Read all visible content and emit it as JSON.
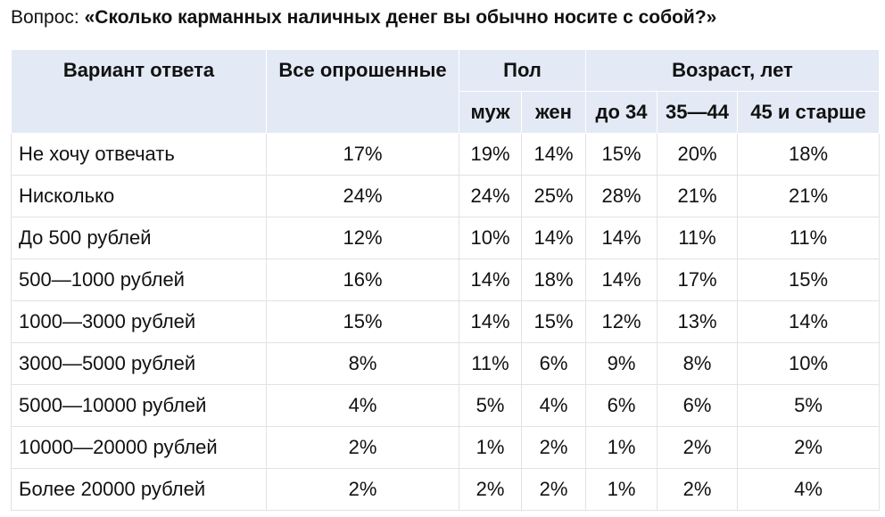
{
  "title": {
    "prefix": "Вопрос:",
    "question": "«Сколько карманных наличных денег вы обычно носите с собой?»"
  },
  "table": {
    "header": {
      "answer": "Вариант ответа",
      "all": "Все опрошенные",
      "sex": "Пол",
      "age": "Возраст, лет",
      "sub": [
        "муж",
        "жен",
        "до 34",
        "35—44",
        "45 и старше"
      ]
    },
    "rows": [
      [
        "Не хочу отвечать",
        "17%",
        "19%",
        "14%",
        "15%",
        "20%",
        "18%"
      ],
      [
        "Нисколько",
        "24%",
        "24%",
        "25%",
        "28%",
        "21%",
        "21%"
      ],
      [
        "До 500 рублей",
        "12%",
        "10%",
        "14%",
        "14%",
        "11%",
        "11%"
      ],
      [
        "500—1000 рублей",
        "16%",
        "14%",
        "18%",
        "14%",
        "17%",
        "15%"
      ],
      [
        "1000—3000 рублей",
        "15%",
        "14%",
        "15%",
        "12%",
        "13%",
        "14%"
      ],
      [
        "3000—5000 рублей",
        "8%",
        "11%",
        "6%",
        "9%",
        "8%",
        "10%"
      ],
      [
        "5000—10000 рублей",
        "4%",
        "5%",
        "4%",
        "6%",
        "6%",
        "5%"
      ],
      [
        "10000—20000 рублей",
        "2%",
        "1%",
        "2%",
        "1%",
        "2%",
        "2%"
      ],
      [
        "Более 20000 рублей",
        "2%",
        "2%",
        "2%",
        "1%",
        "2%",
        "4%"
      ]
    ]
  }
}
